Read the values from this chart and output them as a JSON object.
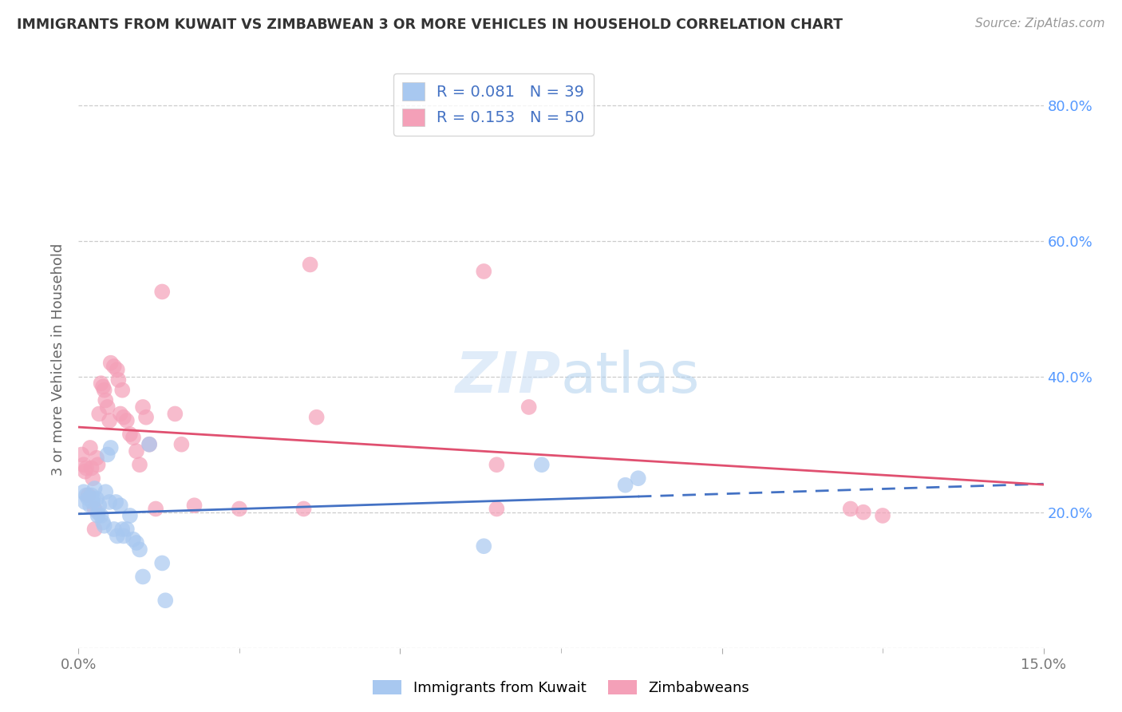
{
  "title": "IMMIGRANTS FROM KUWAIT VS ZIMBABWEAN 3 OR MORE VEHICLES IN HOUSEHOLD CORRELATION CHART",
  "source": "Source: ZipAtlas.com",
  "ylabel": "3 or more Vehicles in Household",
  "xlim": [
    0.0,
    0.15
  ],
  "ylim": [
    0.0,
    0.85
  ],
  "yticks": [
    0.0,
    0.2,
    0.4,
    0.6,
    0.8
  ],
  "yticklabels_right": [
    "",
    "20.0%",
    "40.0%",
    "60.0%",
    "80.0%"
  ],
  "xtick_positions": [
    0.0,
    0.05,
    0.1,
    0.15
  ],
  "xticklabels": [
    "0.0%",
    "",
    "",
    "15.0%"
  ],
  "legend1_label": "Immigrants from Kuwait",
  "legend2_label": "Zimbabweans",
  "R1": 0.081,
  "N1": 39,
  "R2": 0.153,
  "N2": 50,
  "color_kuwait": "#a8c8f0",
  "color_zimbabwe": "#f4a0b8",
  "color_line_kuwait": "#4472c4",
  "color_line_zimbabwe": "#e05070",
  "color_stat": "#4472c4",
  "color_right_axis": "#5599ff",
  "kuwait_x": [
    0.0008,
    0.001,
    0.0012,
    0.0015,
    0.0018,
    0.002,
    0.0022,
    0.0022,
    0.0025,
    0.0028,
    0.003,
    0.003,
    0.0032,
    0.0035,
    0.0038,
    0.004,
    0.0042,
    0.0045,
    0.0048,
    0.005,
    0.0055,
    0.0058,
    0.006,
    0.0065,
    0.0068,
    0.007,
    0.0075,
    0.008,
    0.0085,
    0.009,
    0.0095,
    0.01,
    0.011,
    0.013,
    0.0135,
    0.063,
    0.072,
    0.085,
    0.087
  ],
  "kuwait_y": [
    0.23,
    0.215,
    0.225,
    0.22,
    0.21,
    0.225,
    0.215,
    0.22,
    0.235,
    0.22,
    0.2,
    0.195,
    0.21,
    0.195,
    0.185,
    0.18,
    0.23,
    0.285,
    0.215,
    0.295,
    0.175,
    0.215,
    0.165,
    0.21,
    0.175,
    0.165,
    0.175,
    0.195,
    0.16,
    0.155,
    0.145,
    0.105,
    0.3,
    0.125,
    0.07,
    0.15,
    0.27,
    0.24,
    0.25
  ],
  "zimbabwe_x": [
    0.0005,
    0.0008,
    0.001,
    0.0012,
    0.0015,
    0.0018,
    0.002,
    0.0022,
    0.0025,
    0.0025,
    0.0028,
    0.003,
    0.0032,
    0.0035,
    0.0038,
    0.004,
    0.0042,
    0.0045,
    0.0048,
    0.005,
    0.0055,
    0.006,
    0.0062,
    0.0065,
    0.0068,
    0.007,
    0.0075,
    0.008,
    0.0085,
    0.009,
    0.0095,
    0.01,
    0.0105,
    0.011,
    0.012,
    0.013,
    0.015,
    0.016,
    0.018,
    0.025,
    0.035,
    0.036,
    0.037,
    0.063,
    0.065,
    0.065,
    0.07,
    0.12,
    0.122,
    0.125
  ],
  "zimbabwe_y": [
    0.285,
    0.27,
    0.26,
    0.265,
    0.225,
    0.295,
    0.265,
    0.25,
    0.175,
    0.205,
    0.28,
    0.27,
    0.345,
    0.39,
    0.385,
    0.38,
    0.365,
    0.355,
    0.335,
    0.42,
    0.415,
    0.41,
    0.395,
    0.345,
    0.38,
    0.34,
    0.335,
    0.315,
    0.31,
    0.29,
    0.27,
    0.355,
    0.34,
    0.3,
    0.205,
    0.525,
    0.345,
    0.3,
    0.21,
    0.205,
    0.205,
    0.565,
    0.34,
    0.555,
    0.27,
    0.205,
    0.355,
    0.205,
    0.2,
    0.195
  ]
}
